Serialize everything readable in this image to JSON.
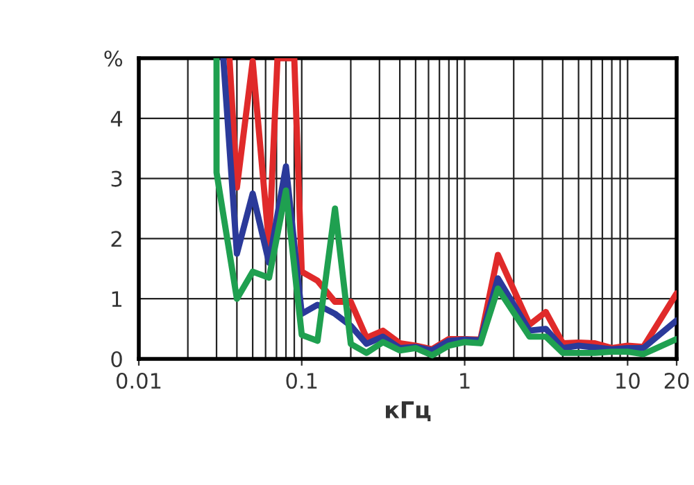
{
  "chart_data": {
    "type": "line",
    "xlabel": "кГц",
    "log": "x",
    "xlim": [
      0.01,
      20
    ],
    "xticks": [
      0.01,
      0.1,
      1,
      10,
      20
    ],
    "ylim": [
      0,
      5
    ],
    "yticks": [
      0,
      1,
      2,
      3,
      4,
      {
        "value": 5,
        "label": "%"
      }
    ],
    "grid": true,
    "legend": false,
    "marker": "none",
    "line_style": "solid",
    "series": [
      {
        "color": "#e02a2a",
        "x": [
          0.036,
          0.04,
          0.05,
          0.063,
          0.071,
          0.09,
          0.1,
          0.125,
          0.16,
          0.2,
          0.25,
          0.315,
          0.4,
          0.5,
          0.63,
          0.8,
          1,
          1.25,
          1.6,
          2.5,
          3.15,
          4,
          5,
          6.3,
          8,
          10,
          12.5,
          20
        ],
        "values": [
          5,
          2.85,
          4.95,
          1.9,
          5,
          5,
          1.45,
          1.3,
          0.95,
          0.95,
          0.35,
          0.47,
          0.26,
          0.22,
          0.16,
          0.33,
          0.33,
          0.32,
          1.73,
          0.57,
          0.78,
          0.26,
          0.27,
          0.26,
          0.18,
          0.22,
          0.2,
          1.09
        ]
      },
      {
        "color": "#2b3a9a",
        "x": [
          0.033,
          0.04,
          0.05,
          0.063,
          0.08,
          0.1,
          0.125,
          0.16,
          0.2,
          0.25,
          0.315,
          0.4,
          0.5,
          0.63,
          0.8,
          1,
          1.25,
          1.6,
          2.5,
          3.15,
          4,
          5,
          6.3,
          8,
          10,
          12.5,
          20
        ],
        "values": [
          5,
          1.75,
          2.75,
          1.6,
          3.2,
          0.75,
          0.9,
          0.75,
          0.55,
          0.25,
          0.37,
          0.18,
          0.2,
          0.14,
          0.3,
          0.32,
          0.31,
          1.34,
          0.47,
          0.5,
          0.18,
          0.22,
          0.19,
          0.16,
          0.18,
          0.18,
          0.64
        ]
      },
      {
        "color": "#1fa050",
        "x": [
          0.03,
          0.03,
          0.04,
          0.05,
          0.063,
          0.08,
          0.1,
          0.125,
          0.16,
          0.2,
          0.25,
          0.315,
          0.4,
          0.5,
          0.63,
          0.8,
          1,
          1.25,
          1.6,
          2.5,
          3.15,
          4,
          5,
          6.3,
          8,
          10,
          12.5,
          20
        ],
        "values": [
          5,
          3.1,
          1.0,
          1.45,
          1.35,
          2.8,
          0.4,
          0.3,
          2.5,
          0.25,
          0.1,
          0.28,
          0.14,
          0.18,
          0.06,
          0.22,
          0.28,
          0.26,
          1.17,
          0.37,
          0.37,
          0.1,
          0.1,
          0.1,
          0.12,
          0.12,
          0.08,
          0.33
        ]
      }
    ]
  }
}
